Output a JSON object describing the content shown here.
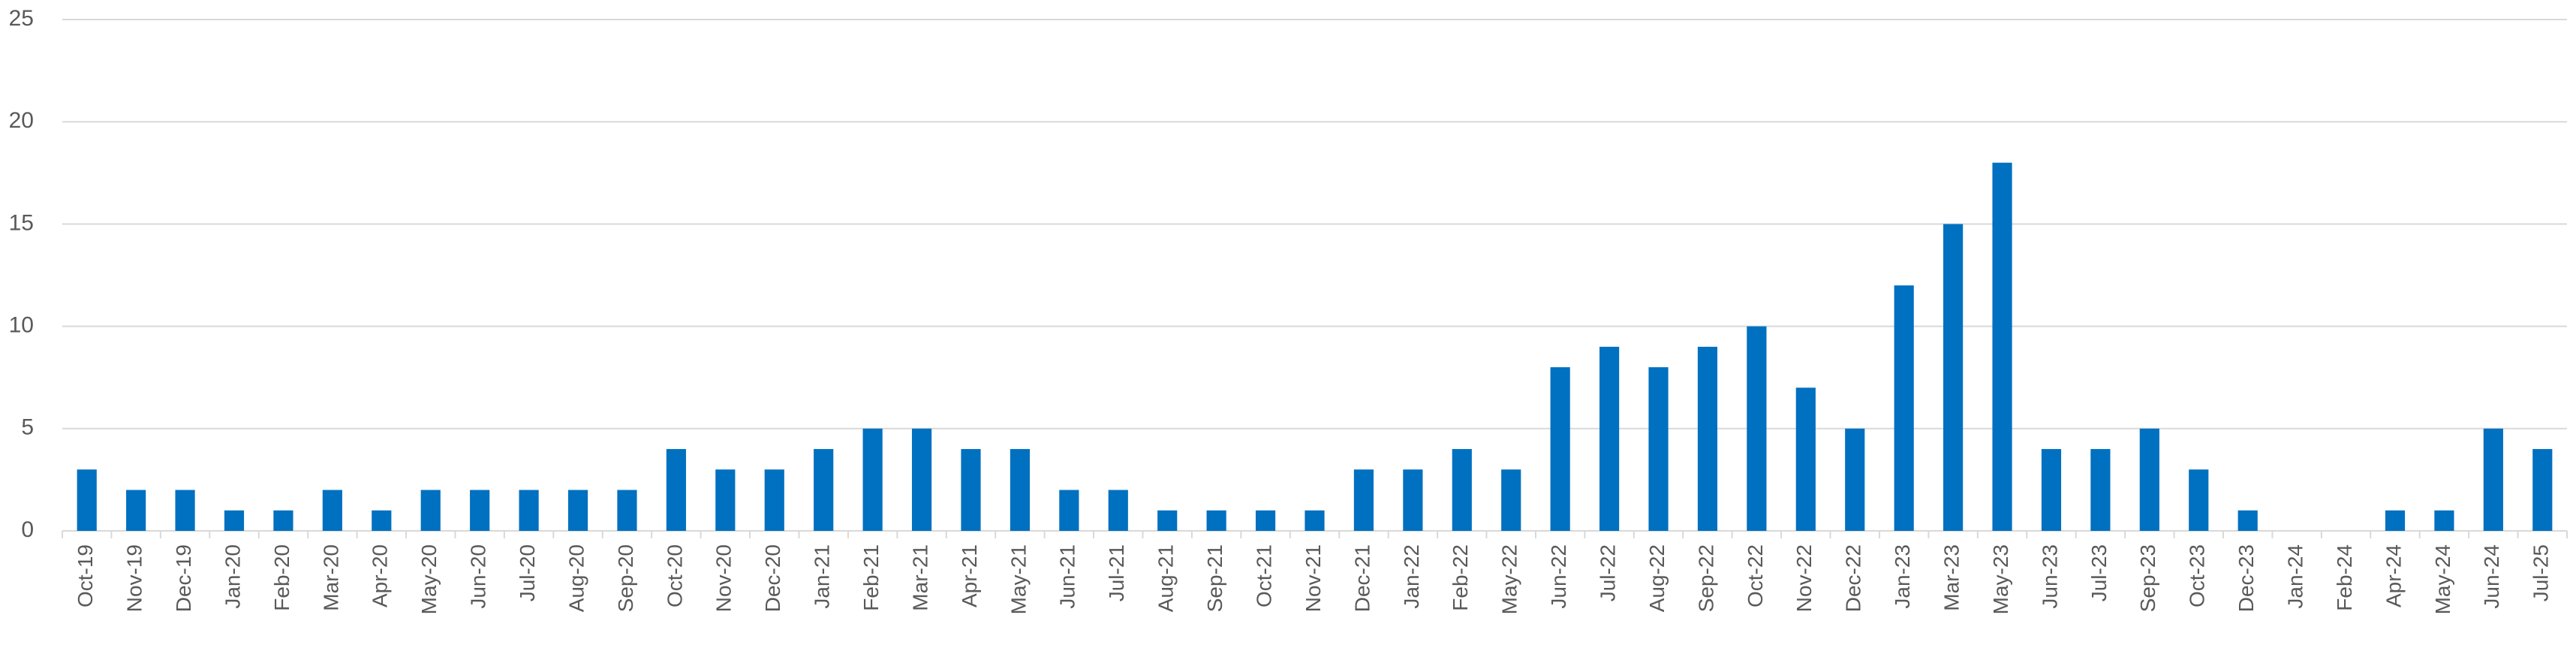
{
  "chart_data": {
    "type": "bar",
    "categories": [
      "Oct-19",
      "Nov-19",
      "Dec-19",
      "Jan-20",
      "Feb-20",
      "Mar-20",
      "Apr-20",
      "May-20",
      "Jun-20",
      "Jul-20",
      "Aug-20",
      "Sep-20",
      "Oct-20",
      "Nov-20",
      "Dec-20",
      "Jan-21",
      "Feb-21",
      "Mar-21",
      "Apr-21",
      "May-21",
      "Jun-21",
      "Jul-21",
      "Aug-21",
      "Sep-21",
      "Oct-21",
      "Nov-21",
      "Dec-21",
      "Jan-22",
      "Feb-22",
      "May-22",
      "Jun-22",
      "Jul-22",
      "Aug-22",
      "Sep-22",
      "Oct-22",
      "Nov-22",
      "Dec-22",
      "Jan-23",
      "Mar-23",
      "May-23",
      "Jun-23",
      "Jul-23",
      "Sep-23",
      "Oct-23",
      "Dec-23",
      "Jan-24",
      "Feb-24",
      "Apr-24",
      "May-24",
      "Jun-24",
      "Jul-25"
    ],
    "values": [
      3,
      2,
      2,
      1,
      1,
      2,
      1,
      2,
      2,
      2,
      2,
      2,
      4,
      3,
      3,
      4,
      5,
      5,
      4,
      4,
      2,
      2,
      1,
      1,
      1,
      1,
      3,
      3,
      4,
      3,
      8,
      9,
      8,
      9,
      10,
      7,
      5,
      12,
      15,
      18,
      4,
      4,
      5,
      3,
      1,
      0,
      0,
      1,
      1,
      5,
      4
    ],
    "color": "#0070c0",
    "ylim": [
      0,
      25
    ],
    "yticks": [
      0,
      5,
      10,
      15,
      20,
      25
    ],
    "grid": true
  }
}
